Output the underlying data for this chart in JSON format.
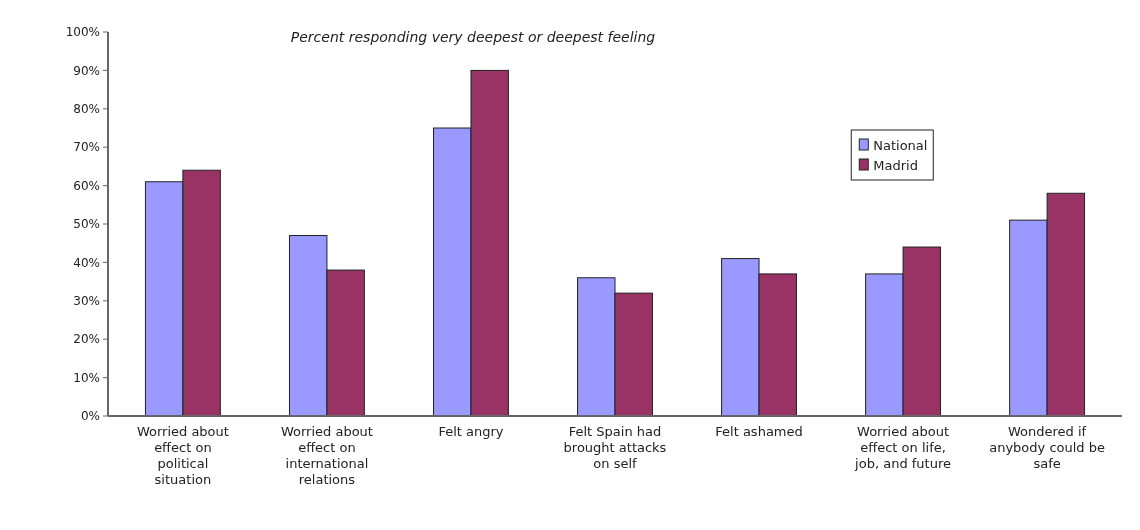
{
  "chart_data": {
    "type": "bar",
    "title": "Percent responding very deepest or deepest feeling",
    "categories": [
      "Worried about effect on political situation",
      "Worried about effect on international relations",
      "Felt angry",
      "Felt Spain had brought attacks on self",
      "Felt ashamed",
      "Worried about effect on life, job, and future",
      "Wondered if anybody could be safe"
    ],
    "series": [
      {
        "name": "National",
        "color": "#9999ff",
        "values": [
          61,
          47,
          75,
          36,
          41,
          37,
          51
        ]
      },
      {
        "name": "Madrid",
        "color": "#993366",
        "values": [
          64,
          38,
          90,
          32,
          37,
          44,
          58
        ]
      }
    ],
    "ylim": [
      0,
      100
    ],
    "yticks": [
      {
        "value": 0,
        "label": "0%"
      },
      {
        "value": 10,
        "label": "10%"
      },
      {
        "value": 20,
        "label": "20%"
      },
      {
        "value": 30,
        "label": "30%"
      },
      {
        "value": 40,
        "label": "40%"
      },
      {
        "value": 50,
        "label": "50%"
      },
      {
        "value": 60,
        "label": "60%"
      },
      {
        "value": 70,
        "label": "70%"
      },
      {
        "value": 80,
        "label": "80%"
      },
      {
        "value": 90,
        "label": "90%"
      },
      {
        "value": 100,
        "label": "100%"
      }
    ],
    "grid": false,
    "legend": "top right"
  }
}
